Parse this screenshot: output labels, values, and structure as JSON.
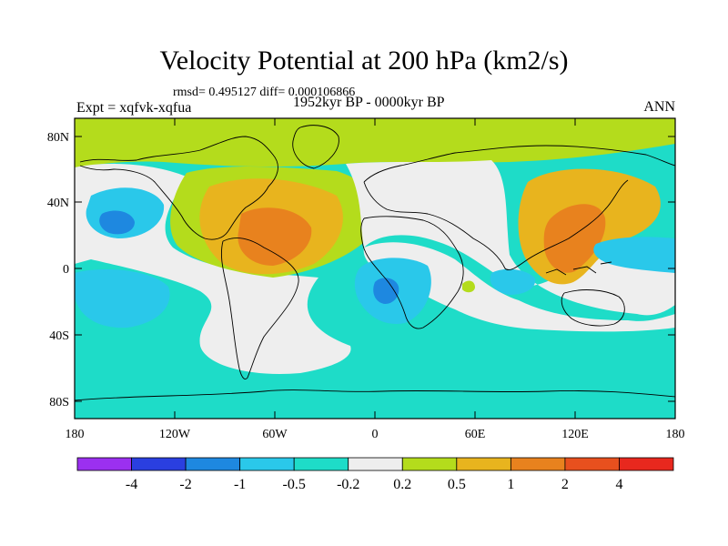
{
  "header": {
    "title": "Velocity Potential at 200 hPa (km2/s)",
    "stats": "rmsd= 0.495127 diff= 0.000106866",
    "experiment": "Expt = xqfvk-xqfua",
    "period": "1952kyr BP - 0000kyr BP",
    "season": "ANN"
  },
  "map": {
    "lat_labels": [
      "80N",
      "40N",
      "0",
      "40S",
      "80S"
    ],
    "lon_labels": [
      "180",
      "120W",
      "60W",
      "0",
      "60E",
      "120E",
      "180"
    ]
  },
  "colorbar": {
    "colors": [
      "#9b30f0",
      "#2a3fe0",
      "#1e88e0",
      "#2ac8ea",
      "#1edcc8",
      "#eeeeee",
      "#b4dc1c",
      "#e8b41e",
      "#e8821e",
      "#e8501e",
      "#e8281e"
    ],
    "labels": [
      "-4",
      "-2",
      "-1",
      "-0.5",
      "-0.2",
      "0.2",
      "0.5",
      "1",
      "2",
      "4"
    ]
  }
}
